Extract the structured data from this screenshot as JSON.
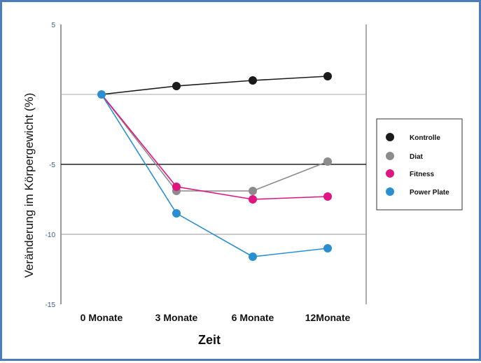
{
  "chart_data": {
    "type": "line",
    "categories": [
      "0 Monate",
      "3 Monate",
      "6 Monate",
      "12Monate"
    ],
    "xlabel": "Zeit",
    "ylabel": "Veränderung im Körpergewicht (%)",
    "ylim": [
      -15,
      5
    ],
    "yticks": [
      5,
      -5,
      -10,
      -15
    ],
    "ytick_labels": [
      "5",
      "-5",
      "-10",
      "-15"
    ],
    "legend_position": "right",
    "series": [
      {
        "name": "Kontrolle",
        "color": "#1a1a1a",
        "values": [
          0,
          0.6,
          1.0,
          1.3
        ]
      },
      {
        "name": "Diät",
        "color": "#8c8c8c",
        "values": [
          0,
          -6.9,
          -6.9,
          -4.8
        ]
      },
      {
        "name": "Fitness",
        "color": "#e0157f",
        "values": [
          0,
          -6.6,
          -7.5,
          -7.3
        ]
      },
      {
        "name": "Power Plate",
        "color": "#2a8fd0",
        "values": [
          0,
          -8.5,
          -11.6,
          -11.0
        ]
      }
    ],
    "legend_labels": [
      "Kontrolle",
      "Diat",
      "Fitness",
      "Power Plate"
    ]
  }
}
